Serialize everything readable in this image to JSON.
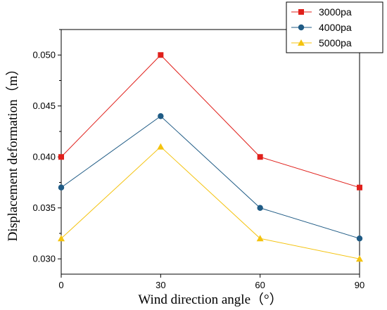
{
  "chart_data": {
    "type": "line",
    "x": [
      0,
      30,
      60,
      90
    ],
    "xlabel": "Wind direction angle（°）",
    "ylabel": "Displacement deformation（m）",
    "xticks": [
      "0",
      "30",
      "60",
      "90"
    ],
    "yticks": [
      "0.030",
      "0.035",
      "0.040",
      "0.045",
      "0.050"
    ],
    "xlim": [
      0,
      90
    ],
    "ylim": [
      0.0285,
      0.0525
    ],
    "grid": false,
    "legend_position": "top-right",
    "series": [
      {
        "name": "3000pa",
        "values": [
          0.04,
          0.05,
          0.04,
          0.037
        ],
        "color": "#e0201b",
        "marker": "square"
      },
      {
        "name": "4000pa",
        "values": [
          0.037,
          0.044,
          0.035,
          0.032
        ],
        "color": "#1f5b85",
        "marker": "circle"
      },
      {
        "name": "5000pa",
        "values": [
          0.032,
          0.041,
          0.032,
          0.03
        ],
        "color": "#f4c30f",
        "marker": "triangle"
      }
    ]
  }
}
